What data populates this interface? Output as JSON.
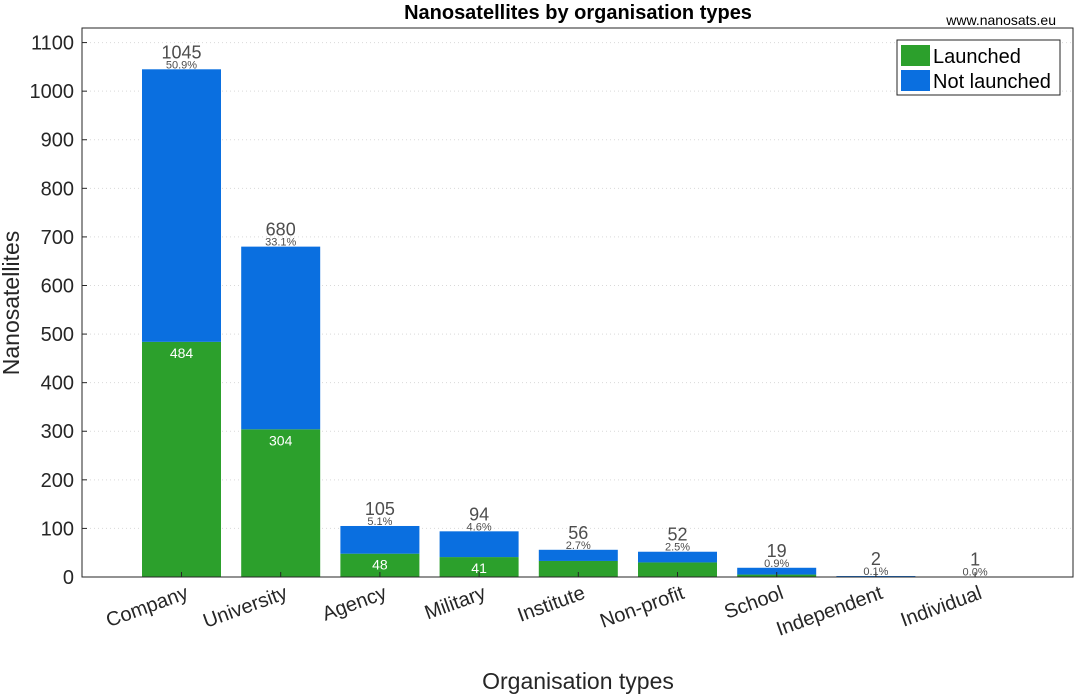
{
  "chart_data": {
    "type": "bar",
    "stacked": true,
    "title": "Nanosatellites by organisation types",
    "credit": "www.nanosats.eu",
    "xlabel": "Organisation types",
    "ylabel": "Nanosatellites",
    "ylim": [
      0,
      1130
    ],
    "yticks": [
      0,
      100,
      200,
      300,
      400,
      500,
      600,
      700,
      800,
      900,
      1000,
      1100
    ],
    "grid": "horizontal-dotted",
    "legend_position": "top-right",
    "categories": [
      "Company",
      "University",
      "Agency",
      "Military",
      "Institute",
      "Non-profit",
      "School",
      "Independent",
      "Individual"
    ],
    "series": [
      {
        "name": "Launched",
        "color": "#2ca02c",
        "values": [
          484,
          304,
          48,
          41,
          33,
          30,
          5,
          0,
          0
        ]
      },
      {
        "name": "Not launched",
        "color": "#0a6fe0",
        "values": [
          561,
          376,
          57,
          53,
          23,
          22,
          14,
          2,
          1
        ]
      }
    ],
    "totals": [
      "1045",
      "680",
      "105",
      "94",
      "56",
      "52",
      "19",
      "2",
      "1"
    ],
    "percentages": [
      "50.9%",
      "33.1%",
      "5.1%",
      "4.6%",
      "2.7%",
      "2.5%",
      "0.9%",
      "0.1%",
      "0.0%"
    ],
    "launched_labels": [
      "484",
      "304",
      "48",
      "41",
      "",
      "",
      "",
      "",
      ""
    ]
  }
}
